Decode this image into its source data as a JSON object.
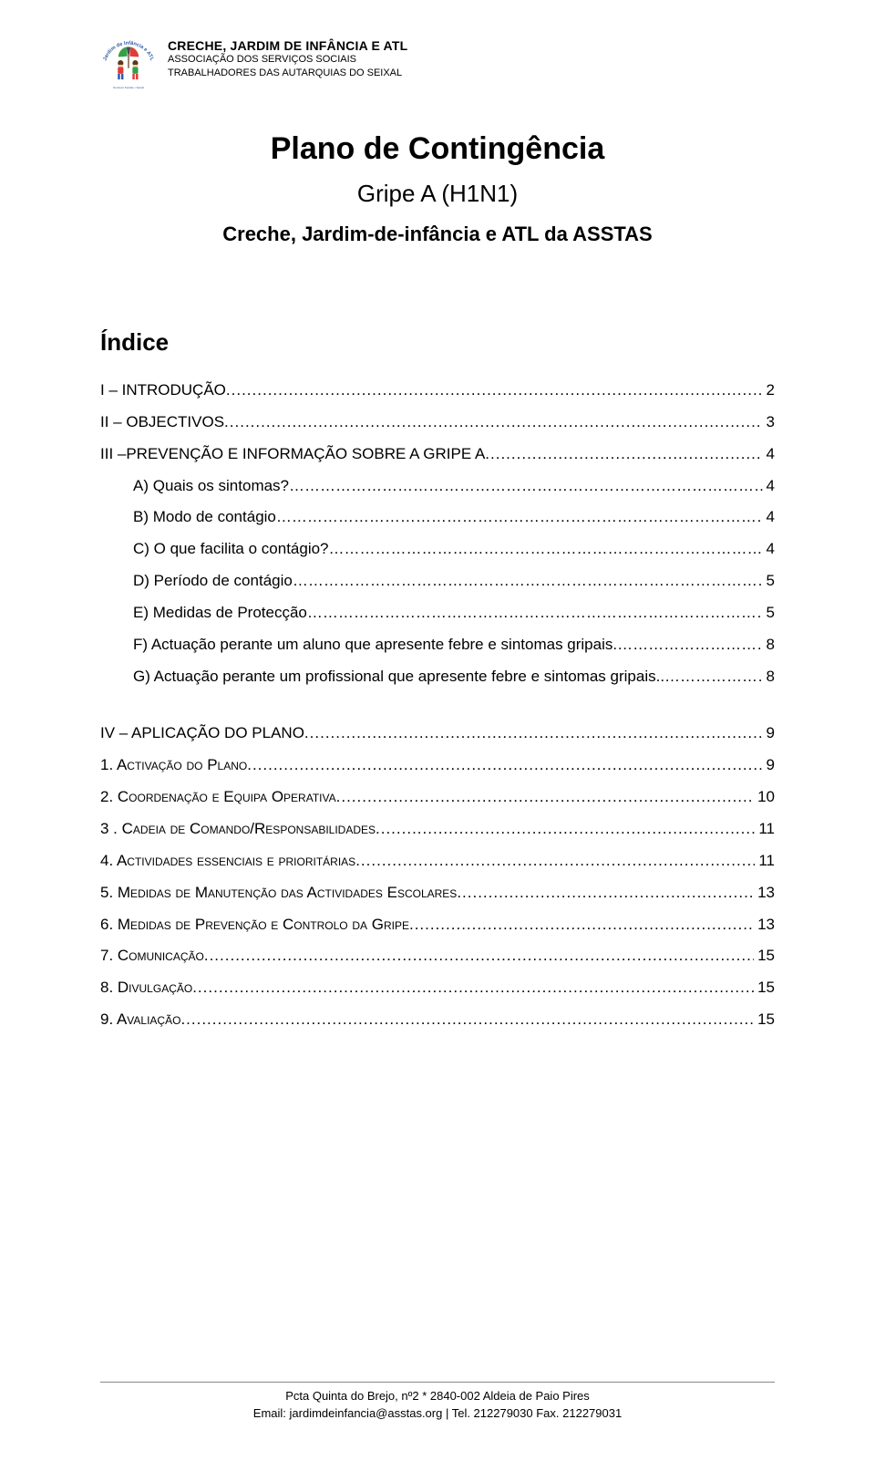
{
  "header": {
    "line1": "CRECHE, JARDIM DE INFÂNCIA E ATL",
    "line2": "ASSOCIAÇÃO DOS SERVIÇOS SOCIAIS",
    "line3": "TRABALHADORES DAS AUTARQUIAS DO SEIXAL"
  },
  "logo": {
    "arc_text_color": "#2e5aa8",
    "child_left_shirt": "#e03b3b",
    "child_left_pants": "#2e5aa8",
    "child_right_shirt": "#2ea24a",
    "child_right_pants": "#e03b3b",
    "skin": "#f4cfa0",
    "hair": "#5a3a1e",
    "umbrella_colors": [
      "#f2c94c",
      "#2ea24a",
      "#e03b3b",
      "#2e5aa8"
    ],
    "caption_color": "#2e5aa8"
  },
  "title": {
    "main": "Plano de Contingência",
    "sub": "Gripe A (H1N1)",
    "sub2": "Creche, Jardim-de-infância e ATL da ASSTAS"
  },
  "index_heading": "Índice",
  "toc": {
    "top": [
      {
        "label": "I – INTRODUÇÃO",
        "page": "2",
        "leader": "dots",
        "sub": false
      },
      {
        "label": "II – OBJECTIVOS",
        "page": "3",
        "leader": "dots",
        "sub": false
      },
      {
        "label": "III –PREVENÇÃO E INFORMAÇÃO SOBRE A GRIPE A",
        "page": "4",
        "leader": "dots",
        "sub": false
      },
      {
        "label": "A)  Quais os sintomas?",
        "page": "4",
        "leader": "ell",
        "sub": true
      },
      {
        "label": "B)  Modo de contágio",
        "page": "4",
        "leader": "ell",
        "sub": true
      },
      {
        "label": "C)  O que facilita o contágio?",
        "page": "4",
        "leader": "ell",
        "sub": true
      },
      {
        "label": "D)  Período de contágio",
        "page": "5",
        "leader": "ell",
        "sub": true
      },
      {
        "label": "E)  Medidas de Protecção",
        "page": "5",
        "leader": "ell",
        "sub": true
      },
      {
        "label": "F)  Actuação perante um aluno que apresente febre e sintomas gripais ",
        "page": "8",
        "leader": "elldot",
        "sub": true
      },
      {
        "label": "G)  Actuação perante um profissional que apresente febre e sintomas gripais.",
        "page": "8",
        "leader": "elldot",
        "sub": true
      }
    ],
    "bottom": [
      {
        "label": "IV – APLICAÇÃO DO PLANO",
        "page": "9",
        "leader": "dots",
        "sc": false
      },
      {
        "label": "1. Activação do Plano",
        "page": "9",
        "leader": "dots",
        "sc": true
      },
      {
        "label": "2. Coordenação e Equipa Operativa",
        "page": "10",
        "leader": "dots",
        "sc": true
      },
      {
        "label": "3 . Cadeia de Comando/Responsabilidades",
        "page": "11",
        "leader": "dots",
        "sc": true
      },
      {
        "label": "4. Actividades essenciais e prioritárias",
        "page": "11",
        "leader": "dots",
        "sc": true
      },
      {
        "label": "5. Medidas de Manutenção das Actividades Escolares",
        "page": "13",
        "leader": "dots",
        "sc": true
      },
      {
        "label": "6. Medidas de Prevenção e Controlo da Gripe",
        "page": "13",
        "leader": "dots",
        "sc": true
      },
      {
        "label": "7. Comunicação",
        "page": "15",
        "leader": "dots",
        "sc": true
      },
      {
        "label": "8. Divulgação",
        "page": "15",
        "leader": "dots",
        "sc": true
      },
      {
        "label": "9. Avaliação",
        "page": "15",
        "leader": "dots",
        "sc": true
      }
    ]
  },
  "footer": {
    "line1": "Pcta Quinta do Brejo, nº2 * 2840-002 Aldeia de Paio Pires",
    "line2": "Email: jardimdeinfancia@asstas.org | Tel. 212279030 Fax. 212279031"
  }
}
